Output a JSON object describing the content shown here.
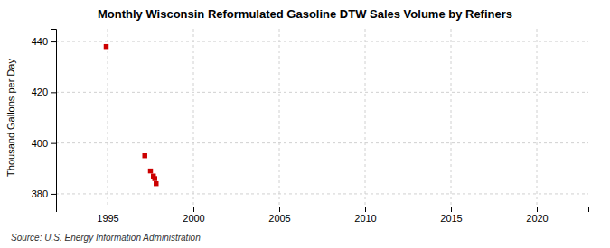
{
  "chart_data": {
    "type": "scatter",
    "title": "Monthly Wisconsin Reformulated Gasoline DTW Sales Volume by Refiners",
    "ylabel": "Thousand Gallons per Day",
    "annotation": "Source: U.S. Energy Information Administration",
    "x": [
      1994.92,
      1997.17,
      1997.5,
      1997.67,
      1997.75,
      1997.83
    ],
    "values": [
      438,
      395,
      389,
      387,
      386,
      384
    ],
    "color": "#cc0000",
    "marker": "square",
    "xlim": [
      1992,
      2023
    ],
    "ylim": [
      375,
      445
    ],
    "xticks": [
      1995,
      2000,
      2005,
      2010,
      2015,
      2020
    ],
    "yticks": [
      380,
      400,
      420,
      440
    ],
    "grid": true
  }
}
